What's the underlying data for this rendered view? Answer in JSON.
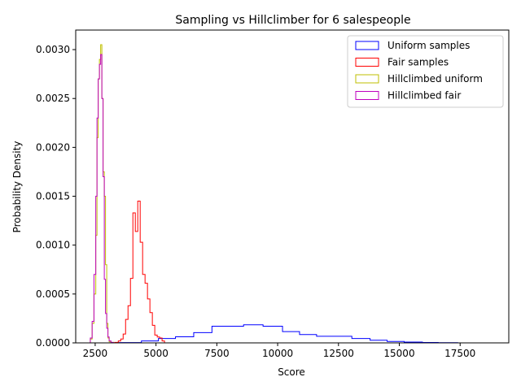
{
  "chart_data": {
    "type": "histogram",
    "title": "Sampling vs Hillclimber for 6 salespeople",
    "xlabel": "Score",
    "ylabel": "Probability Density",
    "xlim": [
      1700,
      19500
    ],
    "ylim": [
      0,
      0.0032
    ],
    "x_ticks": [
      2500,
      5000,
      7500,
      10000,
      12500,
      15000,
      17500
    ],
    "x_tick_labels": [
      "2500",
      "5000",
      "7500",
      "10000",
      "12500",
      "15000",
      "17500"
    ],
    "y_ticks": [
      0,
      0.0005,
      0.001,
      0.0015,
      0.002,
      0.0025,
      0.003
    ],
    "y_tick_labels": [
      "0.0000",
      "0.0005",
      "0.0010",
      "0.0015",
      "0.0020",
      "0.0025",
      "0.0030"
    ],
    "legend_position": "top-right",
    "grid": false,
    "series": [
      {
        "name": "Uniform samples",
        "color": "#0000ff",
        "edges": [
          2500,
          3450,
          4400,
          5100,
          5800,
          6550,
          7300,
          8600,
          9400,
          10200,
          10900,
          11600,
          13050,
          13800,
          14500,
          15200,
          15950,
          16600,
          17400,
          18900
        ],
        "values": [
          5e-07,
          3e-06,
          2e-05,
          4.5e-05,
          6.2e-05,
          0.000105,
          0.00017,
          0.000185,
          0.00017,
          0.000115,
          8.5e-05,
          6.8e-05,
          4.5e-05,
          2.7e-05,
          1.5e-05,
          8e-06,
          4e-06,
          2e-06,
          5e-07
        ]
      },
      {
        "name": "Fair samples",
        "color": "#ff0000",
        "edges": [
          3300,
          3450,
          3550,
          3650,
          3750,
          3850,
          3950,
          4050,
          4150,
          4250,
          4350,
          4450,
          4550,
          4650,
          4750,
          4850,
          4950,
          5050,
          5150,
          5250,
          5350
        ],
        "values": [
          5e-06,
          2e-05,
          4e-05,
          9e-05,
          0.00024,
          0.00038,
          0.00066,
          0.00133,
          0.00114,
          0.00145,
          0.00103,
          0.0007,
          0.00061,
          0.00045,
          0.00031,
          0.00018,
          8e-05,
          6e-05,
          5e-05,
          2e-05
        ]
      },
      {
        "name": "Hillclimbed uniform",
        "color": "#bfbf00",
        "edges": [
          2300,
          2375,
          2450,
          2525,
          2575,
          2625,
          2675,
          2725,
          2775,
          2825,
          2875,
          2925,
          2975,
          3025,
          3075,
          3150,
          3250
        ],
        "values": [
          4e-05,
          0.0002,
          0.0005,
          0.0011,
          0.0021,
          0.0027,
          0.0029,
          0.00305,
          0.0025,
          0.00175,
          0.0015,
          0.0008,
          0.0002,
          5e-05,
          1e-05,
          5e-06
        ]
      },
      {
        "name": "Hillclimbed fair",
        "color": "#bf00bf",
        "edges": [
          2300,
          2375,
          2450,
          2525,
          2575,
          2625,
          2675,
          2725,
          2775,
          2825,
          2875,
          2925,
          2975,
          3025,
          3075,
          3150,
          3250
        ],
        "values": [
          5e-05,
          0.00022,
          0.0007,
          0.0015,
          0.0023,
          0.0027,
          0.00285,
          0.00295,
          0.0025,
          0.0017,
          0.00065,
          0.0003,
          0.00015,
          6e-05,
          2e-05,
          5e-06
        ]
      }
    ]
  }
}
